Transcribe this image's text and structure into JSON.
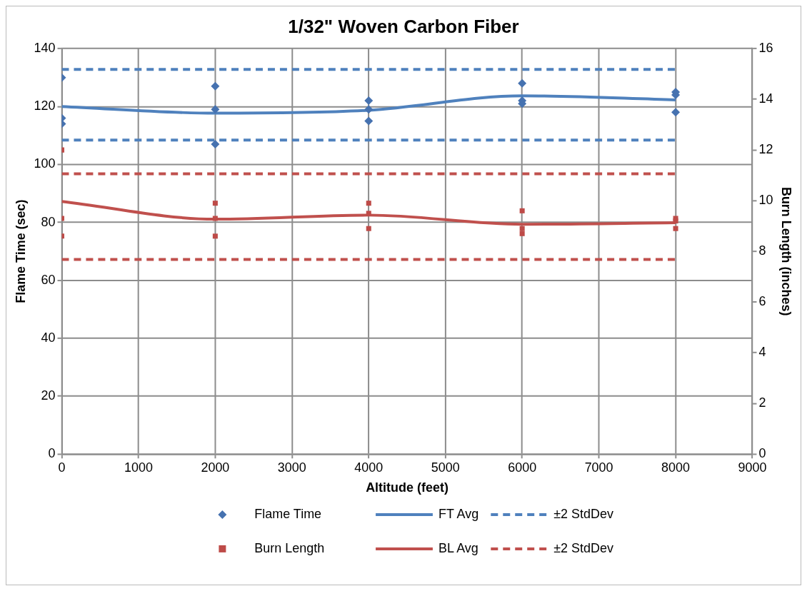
{
  "chart_data": {
    "type": "scatter",
    "title": "1/32\" Woven Carbon Fiber",
    "xlabel": "Altitude (feet)",
    "ylabel": "Flame Time (sec)",
    "y2label": "Burn Length (inches)",
    "xlim": [
      0,
      9000
    ],
    "xticks": [
      0,
      1000,
      2000,
      3000,
      4000,
      5000,
      6000,
      7000,
      8000,
      9000
    ],
    "ylim": [
      0,
      140
    ],
    "yticks": [
      0,
      20,
      40,
      60,
      80,
      100,
      120,
      140
    ],
    "y2lim": [
      0,
      16
    ],
    "y2ticks": [
      0,
      2,
      4,
      6,
      8,
      10,
      12,
      14,
      16
    ],
    "grid": true,
    "legend": "bottom",
    "series": [
      {
        "name": "Flame Time",
        "marker": "diamond",
        "color": "#4672b0",
        "x": [
          0,
          0,
          0,
          2000,
          2000,
          2000,
          4000,
          4000,
          4000,
          6000,
          6000,
          6000,
          8000,
          8000,
          8000
        ],
        "values": [
          130,
          116,
          114,
          127,
          119,
          107,
          122,
          119,
          115,
          128,
          122,
          121,
          125,
          124,
          118
        ]
      },
      {
        "name": "FT Avg",
        "type": "line",
        "marker": "none",
        "line_style": "solid",
        "color": "#4f81bd",
        "x": [
          0,
          2000,
          4000,
          6000,
          8000
        ],
        "values": [
          120,
          117.7,
          118.7,
          123.7,
          122.3
        ]
      },
      {
        "name": "±2 StdDev",
        "type": "line",
        "marker": "none",
        "line_style": "dashed",
        "color": "#4f81bd",
        "x": [
          0,
          8000
        ],
        "values": [
          132.8,
          132.8
        ]
      },
      {
        "type": "line",
        "marker": "none",
        "line_style": "dashed",
        "color": "#4f81bd",
        "x": [
          0,
          8000
        ],
        "values": [
          108.4,
          108.4
        ]
      },
      {
        "name": "Burn Length",
        "marker": "square",
        "axis": "y2",
        "color": "#be4b48",
        "x": [
          0,
          0,
          0,
          2000,
          2000,
          2000,
          4000,
          4000,
          4000,
          6000,
          6000,
          6000,
          8000,
          8000,
          8000
        ],
        "values": [
          12.0,
          9.3,
          8.6,
          9.9,
          9.3,
          8.6,
          9.9,
          9.5,
          8.9,
          9.6,
          8.9,
          8.7,
          9.3,
          9.2,
          8.9
        ]
      },
      {
        "name": "BL Avg",
        "type": "line",
        "marker": "none",
        "line_style": "solid",
        "axis": "y2",
        "color": "#c0504d",
        "x": [
          0,
          2000,
          4000,
          6000,
          8000
        ],
        "values": [
          9.97,
          9.27,
          9.43,
          9.07,
          9.13
        ]
      },
      {
        "name": "±2 StdDev",
        "type": "line",
        "marker": "none",
        "line_style": "dashed",
        "axis": "y2",
        "color": "#c0504d",
        "x": [
          0,
          8000
        ],
        "values": [
          11.06,
          11.06
        ]
      },
      {
        "type": "line",
        "marker": "none",
        "line_style": "dashed",
        "axis": "y2",
        "color": "#c0504d",
        "x": [
          0,
          8000
        ],
        "values": [
          7.68,
          7.68
        ]
      }
    ]
  }
}
